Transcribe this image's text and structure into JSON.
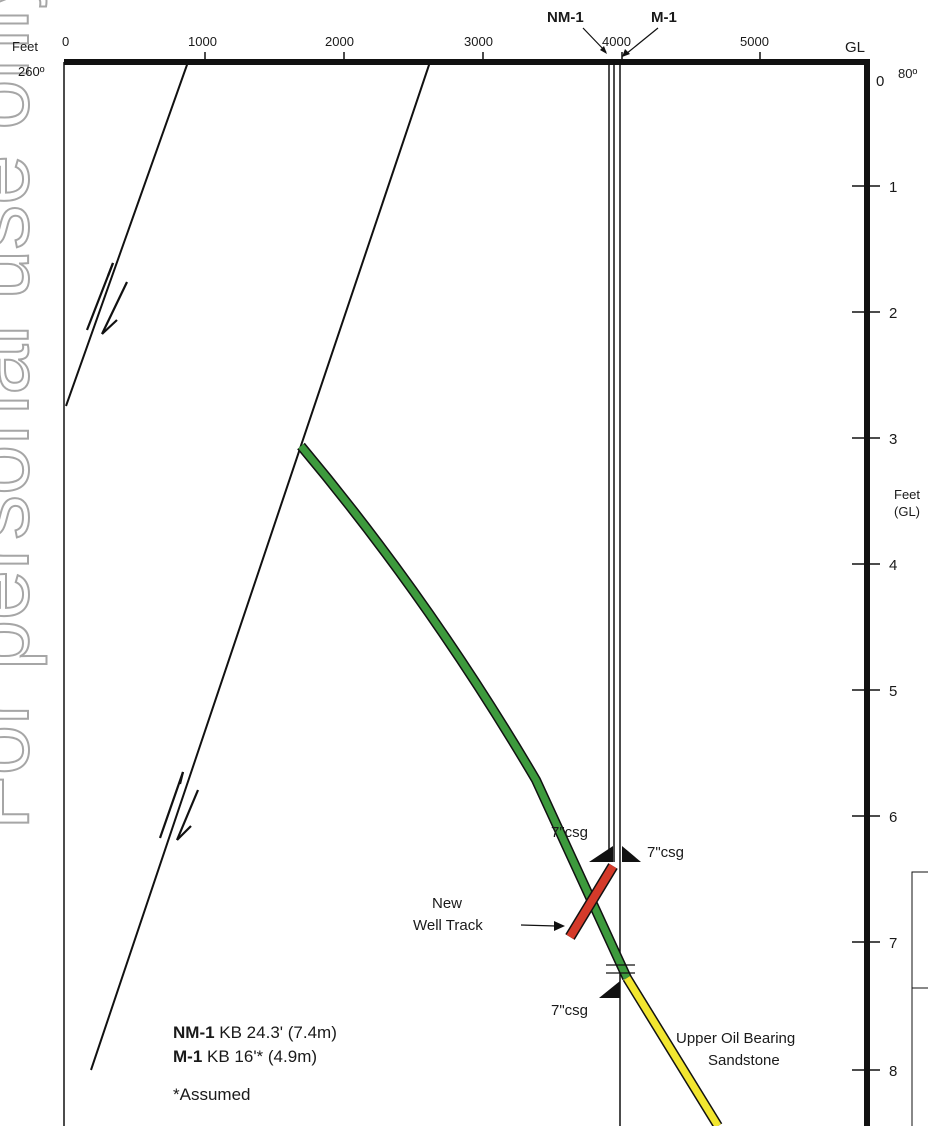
{
  "watermark": "For personal use only",
  "top_axis": {
    "unit": "Feet",
    "tick_labels": [
      "0",
      "1000",
      "2000",
      "3000",
      "4000",
      "5000"
    ],
    "right_label": "GL",
    "left_azimuth": "260º",
    "right_azimuth": "80º"
  },
  "depth_axis": {
    "tick_labels": [
      "0",
      "1",
      "2",
      "3",
      "4",
      "5",
      "6",
      "7",
      "8"
    ],
    "unit_line1": "Feet",
    "unit_line2": "(GL)"
  },
  "wells": {
    "nm1_label": "NM-1",
    "m1_label": "M-1"
  },
  "annotations": {
    "csg_nm1_upper": "7\"csg",
    "csg_m1_upper": "7\"csg",
    "csg_lower": "7\"csg",
    "new_track_line1": "New",
    "new_track_line2": "Well Track",
    "sand_line1": "Upper Oil Bearing",
    "sand_line2": "Sandstone"
  },
  "legend": {
    "nm1_name": "NM-1",
    "nm1_kb": " KB 24.3' (7.4m)",
    "m1_name": "M-1",
    "m1_kb": " KB 16'* (4.9m)",
    "assumed": "*Assumed"
  },
  "colors": {
    "line": "#111111",
    "track_green": "#3d9a3d",
    "track_red": "#d43a2a",
    "track_yellow": "#f2e630",
    "watermark": "#a6a6a6"
  }
}
